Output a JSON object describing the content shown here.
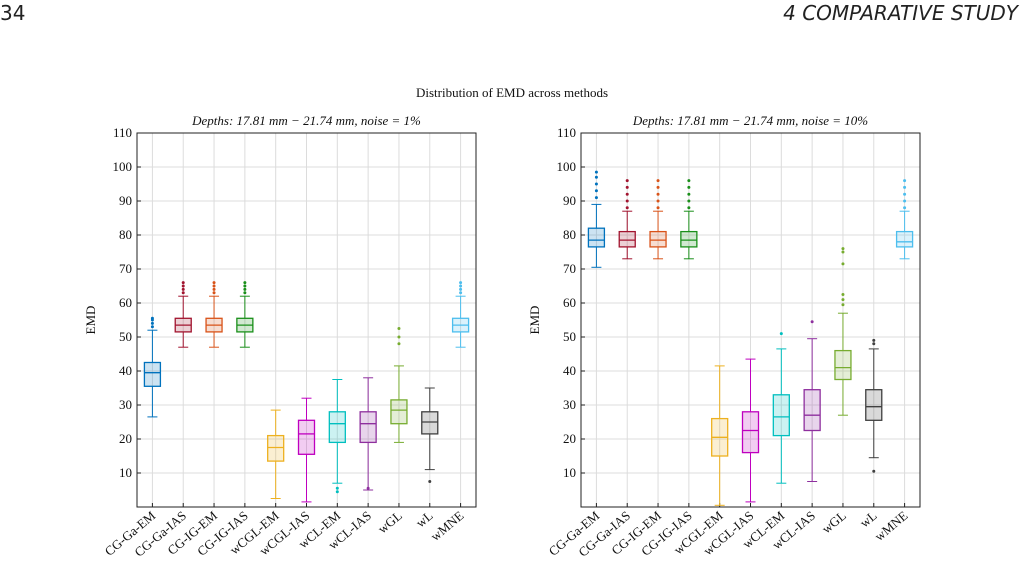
{
  "header": {
    "page_number": "34",
    "section": "4 COMPARATIVE STUDY"
  },
  "figure_title": "Distribution of EMD across methods",
  "chart_data": [
    {
      "type": "box",
      "title": "Depths: 17.81 mm − 21.74 mm, noise = 1%",
      "y_label": "EMD",
      "categories": [
        "CG-Ga-EM",
        "CG-Ga-IAS",
        "CG-IG-EM",
        "CG-IG-IAS",
        "wCGL-EM",
        "wCGL-IAS",
        "wCL-EM",
        "wCL-IAS",
        "wGL",
        "wL",
        "wMNE"
      ],
      "colors": [
        "#0072bd",
        "#a2142f",
        "#d95319",
        "#1a8f1a",
        "#edb120",
        "#bf00bf",
        "#00bfbf",
        "#8e2f9e",
        "#77ac30",
        "#404040",
        "#4dbeee"
      ],
      "whisker_low": [
        26.5,
        47,
        47,
        47,
        2.5,
        1.5,
        7,
        5,
        19,
        11,
        47
      ],
      "q1": [
        35.5,
        51.5,
        51.5,
        51.5,
        13.5,
        15.5,
        19,
        19,
        24.5,
        21.5,
        51.5
      ],
      "median": [
        39.5,
        53.5,
        53.5,
        53.5,
        17.5,
        21.5,
        24.5,
        24.5,
        28.5,
        25,
        53.5
      ],
      "q3": [
        42.5,
        55.5,
        55.5,
        55.5,
        21,
        25.5,
        28,
        28,
        31.5,
        28,
        55.5
      ],
      "whisker_high": [
        52,
        62,
        62,
        62,
        28.5,
        32,
        37.5,
        38,
        41.5,
        35,
        62
      ],
      "outliers": [
        [
          53,
          54,
          55,
          55.5
        ],
        [
          63,
          64,
          65,
          66
        ],
        [
          63,
          64,
          65,
          66
        ],
        [
          63,
          64,
          65,
          66
        ],
        [],
        [],
        [
          4.5,
          5.5
        ],
        [
          5.5
        ],
        [
          48,
          50,
          52.5
        ],
        [
          7.5
        ],
        [
          63,
          64,
          65,
          66
        ]
      ],
      "ylim": [
        0,
        110
      ],
      "yticks": [
        10,
        20,
        30,
        40,
        50,
        60,
        70,
        80,
        90,
        100,
        110
      ],
      "grid": true
    },
    {
      "type": "box",
      "title": "Depths: 17.81 mm − 21.74 mm, noise = 10%",
      "y_label": "EMD",
      "categories": [
        "CG-Ga-EM",
        "CG-Ga-IAS",
        "CG-IG-EM",
        "CG-IG-IAS",
        "wCGL-EM",
        "wCGL-IAS",
        "wCL-EM",
        "wCL-IAS",
        "wGL",
        "wL",
        "wMNE"
      ],
      "colors": [
        "#0072bd",
        "#a2142f",
        "#d95319",
        "#1a8f1a",
        "#edb120",
        "#bf00bf",
        "#00bfbf",
        "#8e2f9e",
        "#77ac30",
        "#404040",
        "#4dbeee"
      ],
      "whisker_low": [
        70.5,
        73,
        73,
        73,
        0.5,
        1.5,
        7,
        7.5,
        27,
        14.5,
        73
      ],
      "q1": [
        76.5,
        76.5,
        76.5,
        76.5,
        15,
        16,
        21,
        22.5,
        37.5,
        25.5,
        76.5
      ],
      "median": [
        78.5,
        78.5,
        78.5,
        78.5,
        20.5,
        22.5,
        26.5,
        27,
        41,
        29.5,
        78
      ],
      "q3": [
        82,
        81,
        81,
        81,
        26,
        28,
        33,
        34.5,
        46,
        34.5,
        81
      ],
      "whisker_high": [
        89,
        87,
        87,
        87,
        41.5,
        43.5,
        46.5,
        49.5,
        57,
        46.5,
        87
      ],
      "outliers": [
        [
          91,
          93,
          95,
          97,
          98.5
        ],
        [
          88,
          90,
          92,
          94,
          96
        ],
        [
          88,
          90,
          92,
          94,
          96
        ],
        [
          88,
          90,
          92,
          94,
          96
        ],
        [],
        [],
        [
          51
        ],
        [
          54.5
        ],
        [
          59.5,
          61,
          62.5,
          71.5,
          75,
          76
        ],
        [
          10.5,
          48,
          49
        ],
        [
          88,
          90,
          92,
          94,
          96
        ]
      ],
      "ylim": [
        0,
        110
      ],
      "yticks": [
        10,
        20,
        30,
        40,
        50,
        60,
        70,
        80,
        90,
        100,
        110
      ],
      "grid": true
    }
  ]
}
